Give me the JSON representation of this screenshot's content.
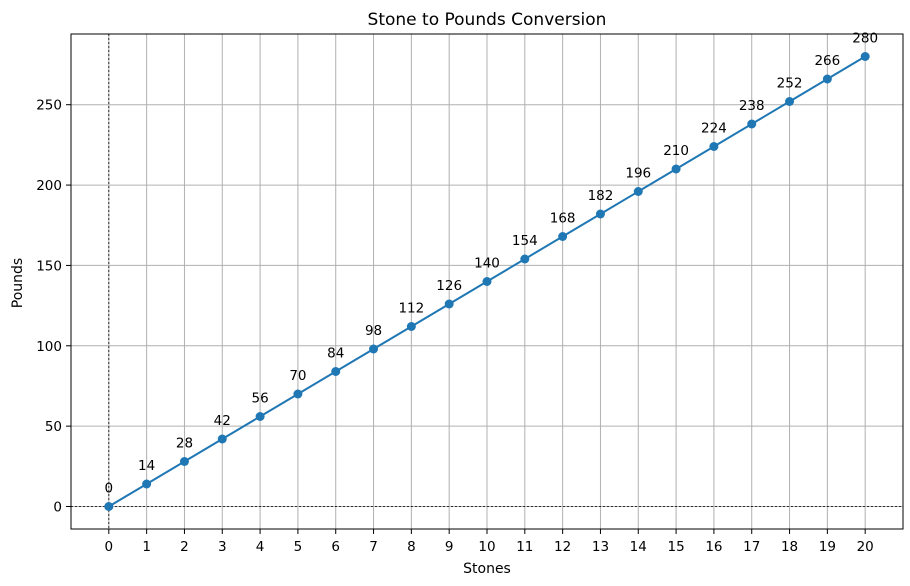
{
  "chart_data": {
    "type": "line",
    "title": "Stone to Pounds Conversion",
    "xlabel": "Stones",
    "ylabel": "Pounds",
    "x": [
      0,
      1,
      2,
      3,
      4,
      5,
      6,
      7,
      8,
      9,
      10,
      11,
      12,
      13,
      14,
      15,
      16,
      17,
      18,
      19,
      20
    ],
    "series": [
      {
        "name": "Pounds",
        "values": [
          0,
          14,
          28,
          42,
          56,
          70,
          84,
          98,
          112,
          126,
          140,
          154,
          168,
          182,
          196,
          210,
          224,
          238,
          252,
          266,
          280
        ],
        "color": "#1f77b4",
        "marker": "circle"
      }
    ],
    "xticks": [
      "0",
      "1",
      "2",
      "3",
      "4",
      "5",
      "6",
      "7",
      "8",
      "9",
      "10",
      "11",
      "12",
      "13",
      "14",
      "15",
      "16",
      "17",
      "18",
      "19",
      "20"
    ],
    "yticks": [
      "0",
      "50",
      "100",
      "150",
      "200",
      "250"
    ],
    "xlim": [
      -1,
      21
    ],
    "ylim": [
      -14,
      294
    ],
    "grid": true,
    "reference_lines": {
      "x": 0,
      "y": 0
    }
  }
}
